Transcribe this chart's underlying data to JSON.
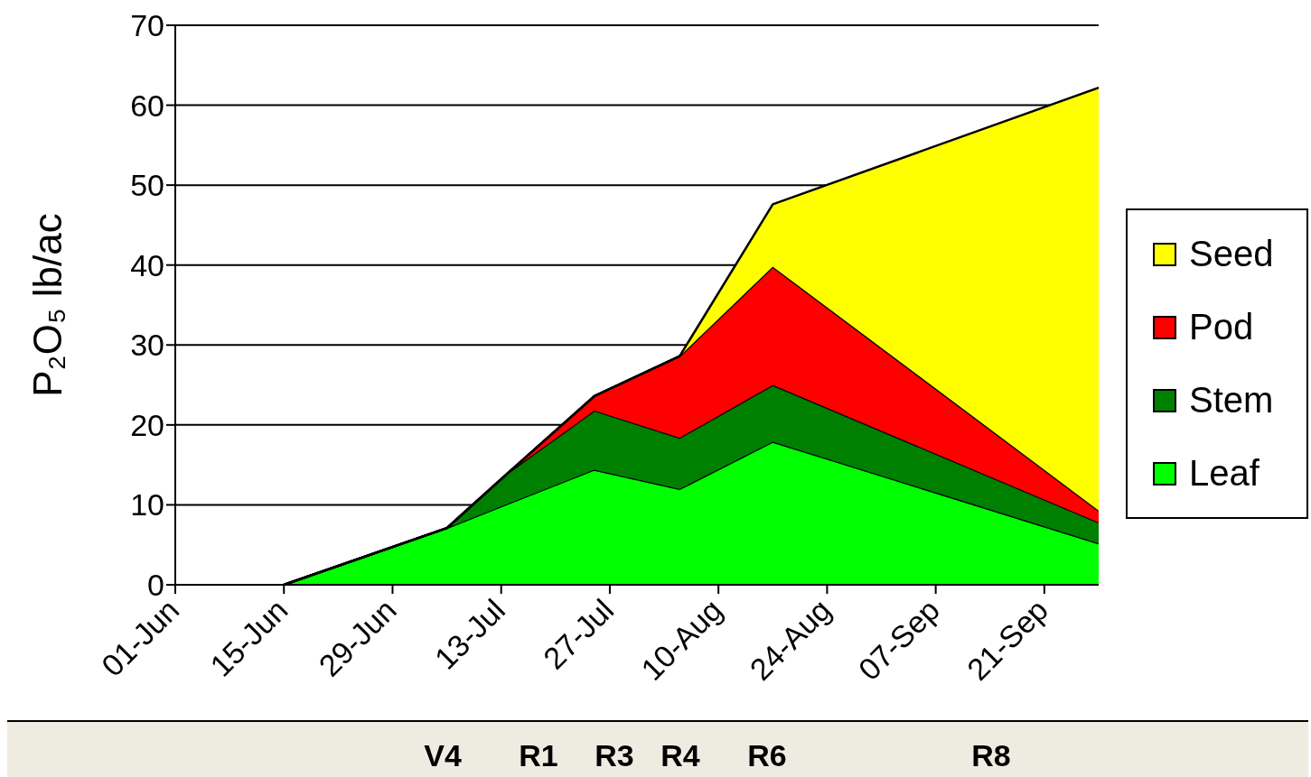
{
  "chart_data": {
    "type": "area",
    "stacked": true,
    "ylabel": "P₂O₅ lb/ac",
    "x": [
      "--06-15",
      "--07-06",
      "--07-14",
      "--07-25",
      "--08-05",
      "--08-17",
      "--09-28"
    ],
    "series": [
      {
        "name": "Leaf",
        "color": "#00ff00",
        "values": [
          0,
          7.1,
          10.2,
          14.4,
          12.0,
          17.9,
          5.2
        ]
      },
      {
        "name": "Stem",
        "color": "#008000",
        "values": [
          0,
          0,
          3.9,
          7.4,
          6.4,
          7.1,
          2.6
        ]
      },
      {
        "name": "Pod",
        "color": "#ff0000",
        "values": [
          0,
          0,
          0,
          1.8,
          10.2,
          14.8,
          1.5
        ]
      },
      {
        "name": "Seed",
        "color": "#ffff00",
        "values": [
          0,
          0,
          0,
          0,
          0,
          7.8,
          52.9
        ]
      }
    ],
    "xlim": [
      "--06-01",
      "--09-28"
    ],
    "xticks": [
      {
        "value": "--06-01",
        "label": "01-Jun"
      },
      {
        "value": "--06-15",
        "label": "15-Jun"
      },
      {
        "value": "--06-29",
        "label": "29-Jun"
      },
      {
        "value": "--07-13",
        "label": "13-Jul"
      },
      {
        "value": "--07-27",
        "label": "27-Jul"
      },
      {
        "value": "--08-10",
        "label": "10-Aug"
      },
      {
        "value": "--08-24",
        "label": "24-Aug"
      },
      {
        "value": "--09-07",
        "label": "07-Sep"
      },
      {
        "value": "--09-21",
        "label": "21-Sep"
      }
    ],
    "ylim": [
      0,
      70
    ],
    "yticks": [
      0,
      10,
      20,
      30,
      40,
      50,
      60,
      70
    ],
    "grid": "y",
    "legend": "right",
    "annotations": [
      "V4",
      "R1",
      "R3",
      "R4",
      "R6",
      "R8"
    ]
  }
}
